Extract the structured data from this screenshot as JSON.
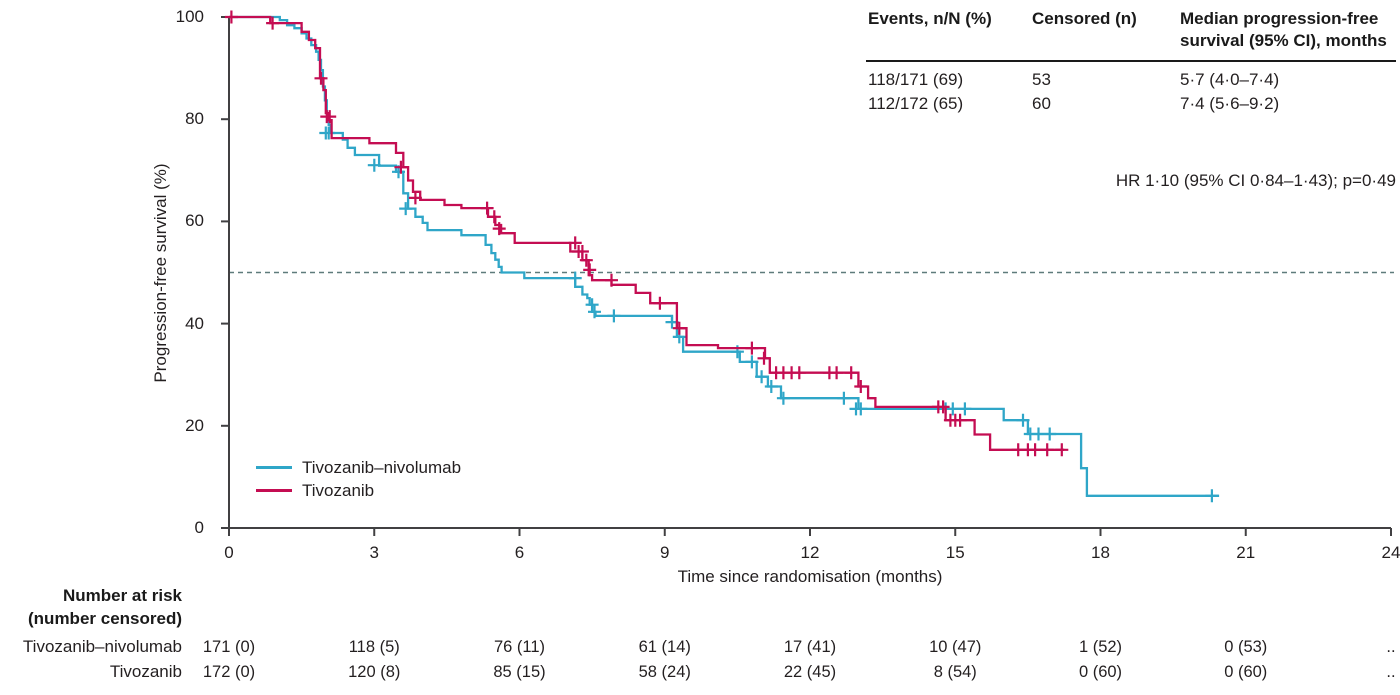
{
  "chart_data": {
    "type": "line",
    "subtype": "kaplan-meier-step",
    "xlabel": "Time since randomisation (months)",
    "ylabel": "Progression-free survival (%)",
    "x_ticks": [
      0,
      3,
      6,
      9,
      12,
      15,
      18,
      21,
      24
    ],
    "y_ticks": [
      0,
      20,
      40,
      60,
      80,
      100
    ],
    "x_max": 24,
    "ylim": [
      0,
      100
    ],
    "median_line_pct": 50,
    "grid": false,
    "legend_position": "inside-lower-left",
    "colors": {
      "axis": "#414042",
      "median_dash": "#5e7b7b",
      "text": "#231f20"
    },
    "series": [
      {
        "name": "Tivozanib–nivolumab",
        "color": "#2fa6c8",
        "end_t": 20.45,
        "points": [
          [
            0,
            100
          ],
          [
            1.05,
            99.4
          ],
          [
            1.2,
            98.4
          ],
          [
            1.35,
            97.8
          ],
          [
            1.5,
            96.8
          ],
          [
            1.6,
            95.8
          ],
          [
            1.7,
            94.5
          ],
          [
            1.8,
            93.2
          ],
          [
            1.85,
            91.6
          ],
          [
            1.9,
            89.6
          ],
          [
            1.94,
            86.4
          ],
          [
            1.98,
            83.7
          ],
          [
            2.02,
            81.2
          ],
          [
            2.06,
            78.9
          ],
          [
            2.1,
            77.3
          ],
          [
            2.35,
            76.0
          ],
          [
            2.45,
            74.4
          ],
          [
            2.6,
            73.0
          ],
          [
            3.1,
            70.9
          ],
          [
            3.45,
            69.7
          ],
          [
            3.6,
            65.5
          ],
          [
            3.7,
            62.5
          ],
          [
            3.85,
            60.9
          ],
          [
            4.0,
            59.7
          ],
          [
            4.1,
            58.3
          ],
          [
            4.8,
            57.3
          ],
          [
            5.3,
            55.4
          ],
          [
            5.42,
            53.8
          ],
          [
            5.5,
            52.5
          ],
          [
            5.57,
            51.1
          ],
          [
            5.63,
            50.0
          ],
          [
            6.1,
            48.9
          ],
          [
            7.15,
            47.2
          ],
          [
            7.3,
            45.7
          ],
          [
            7.4,
            45.0
          ],
          [
            7.45,
            43.7
          ],
          [
            7.5,
            42.3
          ],
          [
            7.57,
            41.5
          ],
          [
            9.15,
            40.3
          ],
          [
            9.25,
            37.4
          ],
          [
            9.38,
            34.5
          ],
          [
            10.55,
            32.5
          ],
          [
            10.9,
            29.6
          ],
          [
            11.13,
            27.7
          ],
          [
            11.4,
            25.4
          ],
          [
            13.0,
            23.3
          ],
          [
            16.0,
            21.1
          ],
          [
            16.5,
            18.4
          ],
          [
            17.6,
            11.7
          ],
          [
            17.72,
            6.3
          ]
        ],
        "censors": [
          [
            2.0,
            77.3
          ],
          [
            2.06,
            77.3
          ],
          [
            3.0,
            71.0
          ],
          [
            3.5,
            69.7
          ],
          [
            3.65,
            62.5
          ],
          [
            7.15,
            48.9
          ],
          [
            7.5,
            43.7
          ],
          [
            7.55,
            42.3
          ],
          [
            7.95,
            41.5
          ],
          [
            9.15,
            40.3
          ],
          [
            9.3,
            37.4
          ],
          [
            10.5,
            34.5
          ],
          [
            10.8,
            32.5
          ],
          [
            11.0,
            29.6
          ],
          [
            11.2,
            27.7
          ],
          [
            11.45,
            25.4
          ],
          [
            12.7,
            25.4
          ],
          [
            12.95,
            23.3
          ],
          [
            13.05,
            23.3
          ],
          [
            14.8,
            23.3
          ],
          [
            14.95,
            23.3
          ],
          [
            15.2,
            23.3
          ],
          [
            16.4,
            21.1
          ],
          [
            16.55,
            18.4
          ],
          [
            16.72,
            18.4
          ],
          [
            16.95,
            18.4
          ],
          [
            20.3,
            6.3
          ]
        ]
      },
      {
        "name": "Tivozanib",
        "color": "#c40d52",
        "end_t": 17.25,
        "points": [
          [
            0,
            100
          ],
          [
            0.85,
            98.8
          ],
          [
            1.5,
            97.1
          ],
          [
            1.65,
            95.5
          ],
          [
            1.78,
            93.9
          ],
          [
            1.88,
            88.0
          ],
          [
            1.95,
            85.7
          ],
          [
            2.0,
            81.2
          ],
          [
            2.05,
            79.8
          ],
          [
            2.12,
            76.3
          ],
          [
            2.9,
            75.3
          ],
          [
            3.45,
            73.4
          ],
          [
            3.6,
            70.6
          ],
          [
            3.7,
            68.0
          ],
          [
            3.8,
            65.8
          ],
          [
            3.95,
            64.2
          ],
          [
            4.45,
            63.2
          ],
          [
            4.8,
            62.6
          ],
          [
            5.35,
            60.9
          ],
          [
            5.5,
            59.3
          ],
          [
            5.62,
            57.7
          ],
          [
            5.9,
            55.8
          ],
          [
            7.05,
            54.1
          ],
          [
            7.3,
            52.4
          ],
          [
            7.43,
            49.5
          ],
          [
            7.5,
            48.5
          ],
          [
            7.9,
            47.6
          ],
          [
            8.4,
            46.0
          ],
          [
            8.7,
            44.0
          ],
          [
            9.25,
            39.1
          ],
          [
            9.45,
            35.8
          ],
          [
            10.1,
            35.2
          ],
          [
            11.07,
            33.2
          ],
          [
            11.17,
            30.4
          ],
          [
            13.0,
            27.7
          ],
          [
            13.2,
            25.4
          ],
          [
            13.35,
            23.7
          ],
          [
            14.8,
            21.1
          ],
          [
            15.4,
            18.3
          ],
          [
            15.72,
            15.3
          ]
        ],
        "censors": [
          [
            0.05,
            100
          ],
          [
            0.9,
            98.8
          ],
          [
            1.9,
            88.0
          ],
          [
            2.02,
            80.5
          ],
          [
            2.08,
            80.5
          ],
          [
            3.55,
            70.6
          ],
          [
            3.85,
            64.6
          ],
          [
            5.33,
            62.6
          ],
          [
            5.48,
            60.9
          ],
          [
            5.58,
            58.6
          ],
          [
            7.15,
            55.8
          ],
          [
            7.22,
            54.1
          ],
          [
            7.3,
            54.1
          ],
          [
            7.38,
            52.4
          ],
          [
            7.45,
            50.5
          ],
          [
            7.9,
            48.5
          ],
          [
            8.9,
            44.0
          ],
          [
            9.3,
            39.1
          ],
          [
            10.8,
            35.2
          ],
          [
            11.05,
            33.2
          ],
          [
            11.3,
            30.4
          ],
          [
            11.45,
            30.4
          ],
          [
            11.62,
            30.4
          ],
          [
            11.78,
            30.4
          ],
          [
            12.4,
            30.4
          ],
          [
            12.55,
            30.4
          ],
          [
            12.85,
            30.4
          ],
          [
            13.05,
            27.7
          ],
          [
            14.65,
            23.7
          ],
          [
            14.75,
            23.7
          ],
          [
            14.9,
            21.1
          ],
          [
            15.0,
            21.1
          ],
          [
            15.1,
            21.1
          ],
          [
            16.3,
            15.3
          ],
          [
            16.5,
            15.3
          ],
          [
            16.65,
            15.3
          ],
          [
            16.9,
            15.3
          ],
          [
            17.2,
            15.3
          ]
        ]
      }
    ]
  },
  "summary_table": {
    "headers": [
      "Events, n/N (%)",
      "Censored (n)",
      "Median progression-free survival (95% CI), months"
    ],
    "rows": [
      [
        "118/171 (69)",
        "53",
        "5·7 (4·0–7·4)"
      ],
      [
        "112/172 (65)",
        "60",
        "7·4 (5·6–9·2)"
      ]
    ]
  },
  "annotation": "HR 1·10 (95% CI 0·84–1·43); p=0·49",
  "risk_table": {
    "title_line1": "Number at risk",
    "title_line2": "(number censored)",
    "rows": [
      {
        "label": "Tivozanib–nivolumab",
        "values": [
          "171 (0)",
          "118 (5)",
          "76 (11)",
          "61 (14)",
          "17 (41)",
          "10 (47)",
          "1 (52)",
          "0 (53)",
          ".."
        ]
      },
      {
        "label": "Tivozanib",
        "values": [
          "172 (0)",
          "120 (8)",
          "85 (15)",
          "58 (24)",
          "22 (45)",
          "8 (54)",
          "0 (60)",
          "0 (60)",
          ".."
        ]
      }
    ]
  }
}
